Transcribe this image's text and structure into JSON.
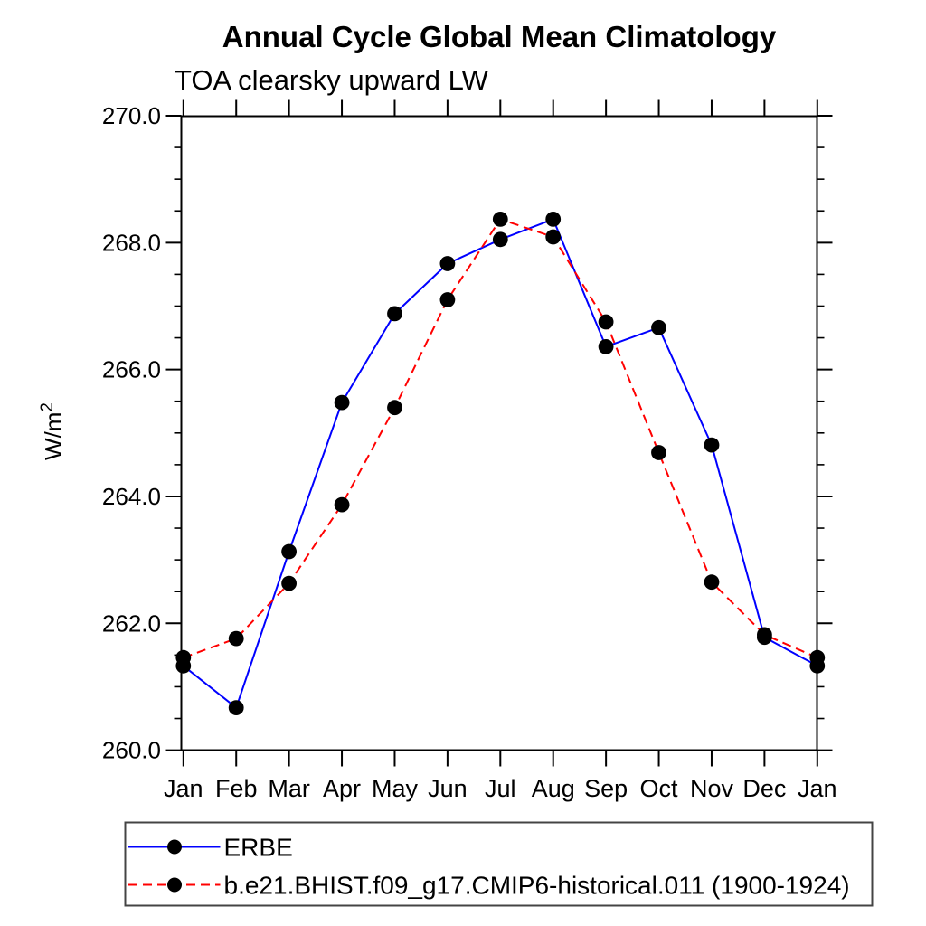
{
  "header": {
    "title": "Annual Cycle Global Mean Climatology",
    "subtitle": "TOA clearsky upward LW"
  },
  "chart_data": {
    "type": "line",
    "title": "Annual Cycle Global Mean Climatology",
    "subtitle": "TOA clearsky upward LW",
    "xlabel": "",
    "ylabel": "W/m²",
    "x_tick_labels": [
      "Jan",
      "Feb",
      "Mar",
      "Apr",
      "May",
      "Jun",
      "Jul",
      "Aug",
      "Sep",
      "Oct",
      "Nov",
      "Dec",
      "Jan"
    ],
    "ylim": [
      260.0,
      270.0
    ],
    "y_ticks": [
      260.0,
      262.0,
      264.0,
      266.0,
      268.0,
      270.0
    ],
    "y_tick_labels": [
      "260.0",
      "262.0",
      "264.0",
      "266.0",
      "268.0",
      "270.0"
    ],
    "y_minor_step": 0.5,
    "grid": false,
    "frame_color": "#000000",
    "marker_color": "#000000",
    "legend_position": "bottom-left",
    "legend_border_color": "#444444",
    "series": [
      {
        "name": "ERBE",
        "color": "#0000ff",
        "style": "solid",
        "marker": "circle",
        "values": [
          261.33,
          260.67,
          263.13,
          265.48,
          266.88,
          267.67,
          268.05,
          268.37,
          266.36,
          266.66,
          264.81,
          261.78,
          261.33
        ]
      },
      {
        "name": "b.e21.BHIST.f09_g17.CMIP6-historical.011 (1900-1924)",
        "color": "#ff0000",
        "style": "dashed",
        "marker": "circle",
        "values": [
          261.46,
          261.76,
          262.63,
          263.87,
          265.4,
          267.1,
          268.37,
          268.09,
          266.75,
          264.69,
          262.65,
          261.82,
          261.46
        ]
      }
    ]
  }
}
